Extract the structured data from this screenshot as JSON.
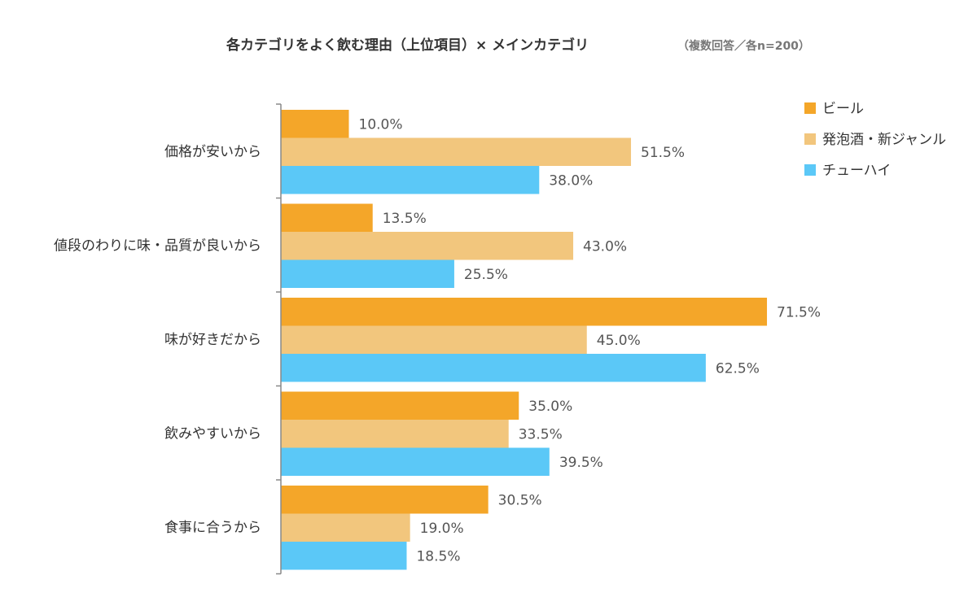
{
  "chart_data": {
    "type": "bar",
    "orientation": "horizontal",
    "title": "各カテゴリをよく飲む理由（上位項目）× メインカテゴリ",
    "subtitle": "（複数回答／各n=200）",
    "categories": [
      "価格が安いから",
      "値段のわりに味・品質が良いから",
      "味が好きだから",
      "飲みやすいから",
      "食事に合うから"
    ],
    "series": [
      {
        "name": "ビール",
        "values": [
          10.0,
          13.5,
          71.5,
          35.0,
          30.5
        ],
        "color": "#F4A629"
      },
      {
        "name": "発泡酒・新ジャンル",
        "values": [
          51.5,
          43.0,
          45.0,
          33.5,
          19.0
        ],
        "color": "#F2C67D"
      },
      {
        "name": "チューハイ",
        "values": [
          38.0,
          25.5,
          62.5,
          39.5,
          18.5
        ],
        "color": "#5BC8F7"
      }
    ],
    "value_suffix": "%",
    "xlim": [
      0,
      100
    ],
    "grid": false,
    "legend_position": "top-right"
  }
}
